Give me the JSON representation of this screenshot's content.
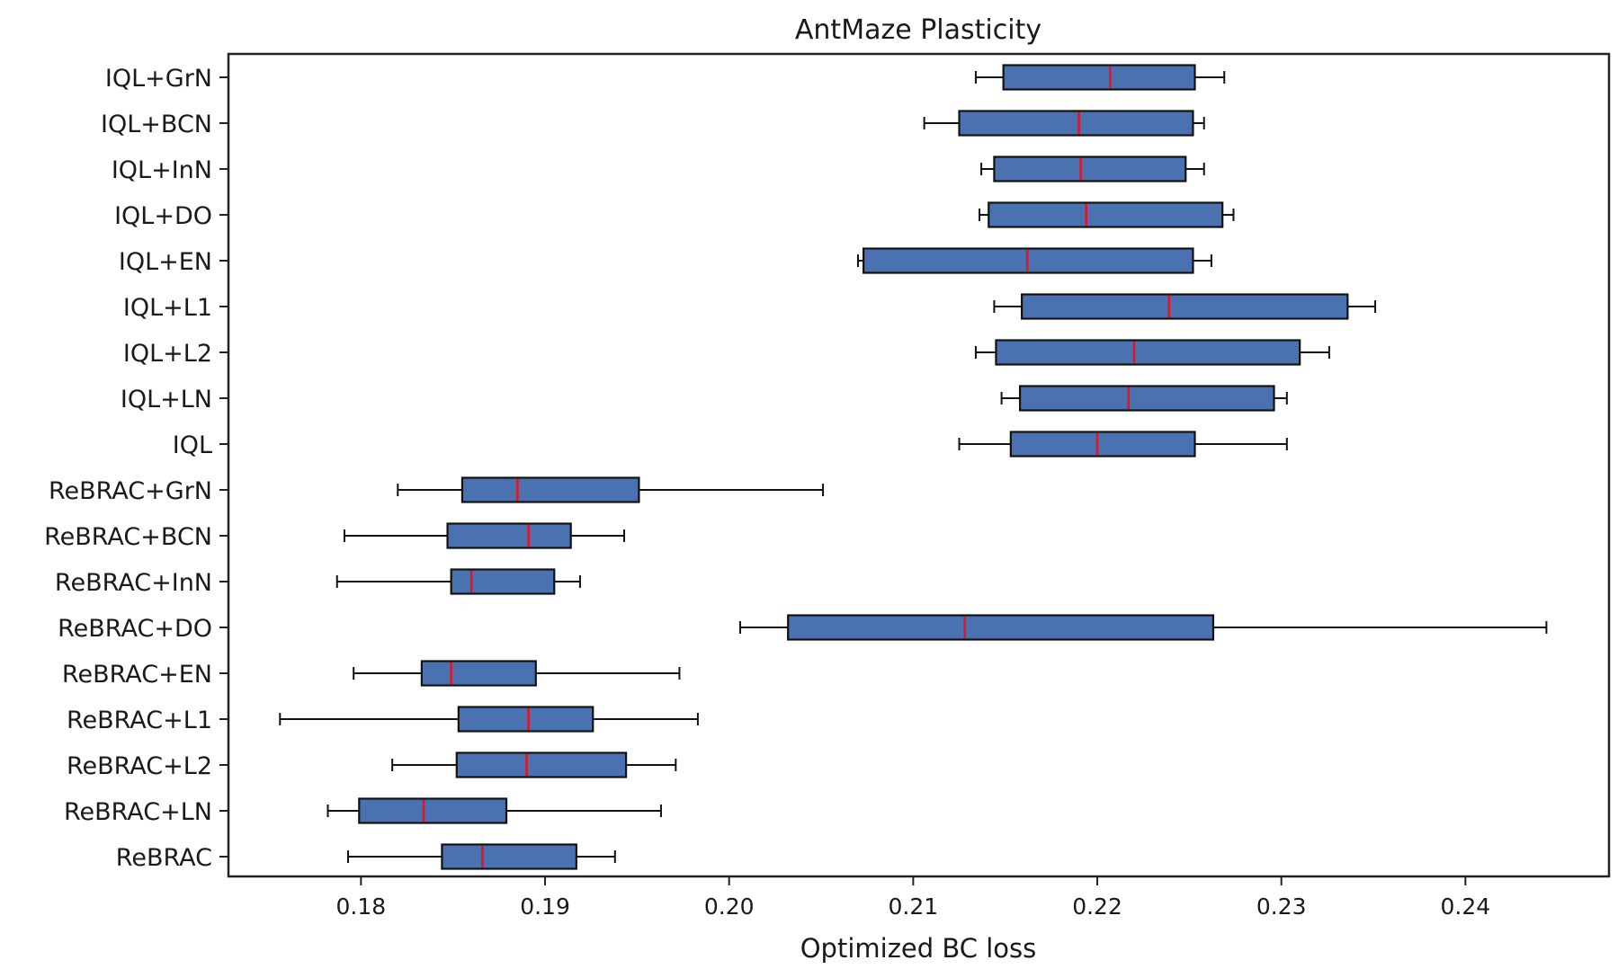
{
  "chart_data": {
    "type": "boxplot",
    "orientation": "horizontal",
    "title": "AntMaze Plasticity",
    "xlabel": "Optimized BC loss",
    "ylabel": "",
    "xlim": [
      0.1728,
      0.2478
    ],
    "xticks": [
      "0.18",
      "0.19",
      "0.20",
      "0.21",
      "0.22",
      "0.23",
      "0.24"
    ],
    "box_color": "#4a72b0",
    "median_color": "#e8111d",
    "categories": [
      "IQL+GrN",
      "IQL+BCN",
      "IQL+InN",
      "IQL+DO",
      "IQL+EN",
      "IQL+L1",
      "IQL+L2",
      "IQL+LN",
      "IQL",
      "ReBRAC+GrN",
      "ReBRAC+BCN",
      "ReBRAC+InN",
      "ReBRAC+DO",
      "ReBRAC+EN",
      "ReBRAC+L1",
      "ReBRAC+L2",
      "ReBRAC+LN",
      "ReBRAC"
    ],
    "series": [
      {
        "name": "IQL+GrN",
        "whisker_low": 0.2134,
        "q1": 0.2149,
        "median": 0.2207,
        "q3": 0.2253,
        "whisker_high": 0.2269
      },
      {
        "name": "IQL+BCN",
        "whisker_low": 0.2106,
        "q1": 0.2125,
        "median": 0.219,
        "q3": 0.2252,
        "whisker_high": 0.2258
      },
      {
        "name": "IQL+InN",
        "whisker_low": 0.2137,
        "q1": 0.2144,
        "median": 0.2191,
        "q3": 0.2248,
        "whisker_high": 0.2258
      },
      {
        "name": "IQL+DO",
        "whisker_low": 0.2136,
        "q1": 0.2141,
        "median": 0.2194,
        "q3": 0.2268,
        "whisker_high": 0.2274
      },
      {
        "name": "IQL+EN",
        "whisker_low": 0.207,
        "q1": 0.2073,
        "median": 0.2162,
        "q3": 0.2252,
        "whisker_high": 0.2262
      },
      {
        "name": "IQL+L1",
        "whisker_low": 0.2144,
        "q1": 0.2159,
        "median": 0.2239,
        "q3": 0.2336,
        "whisker_high": 0.2351
      },
      {
        "name": "IQL+L2",
        "whisker_low": 0.2134,
        "q1": 0.2145,
        "median": 0.222,
        "q3": 0.231,
        "whisker_high": 0.2326
      },
      {
        "name": "IQL+LN",
        "whisker_low": 0.2148,
        "q1": 0.2158,
        "median": 0.2217,
        "q3": 0.2296,
        "whisker_high": 0.2303
      },
      {
        "name": "IQL",
        "whisker_low": 0.2125,
        "q1": 0.2153,
        "median": 0.22,
        "q3": 0.2253,
        "whisker_high": 0.2303
      },
      {
        "name": "ReBRAC+GrN",
        "whisker_low": 0.182,
        "q1": 0.1855,
        "median": 0.1885,
        "q3": 0.1951,
        "whisker_high": 0.2051
      },
      {
        "name": "ReBRAC+BCN",
        "whisker_low": 0.1791,
        "q1": 0.1847,
        "median": 0.1891,
        "q3": 0.1914,
        "whisker_high": 0.1943
      },
      {
        "name": "ReBRAC+InN",
        "whisker_low": 0.1787,
        "q1": 0.1849,
        "median": 0.186,
        "q3": 0.1905,
        "whisker_high": 0.1919
      },
      {
        "name": "ReBRAC+DO",
        "whisker_low": 0.2006,
        "q1": 0.2032,
        "median": 0.2128,
        "q3": 0.2263,
        "whisker_high": 0.2444
      },
      {
        "name": "ReBRAC+EN",
        "whisker_low": 0.1796,
        "q1": 0.1833,
        "median": 0.1849,
        "q3": 0.1895,
        "whisker_high": 0.1973
      },
      {
        "name": "ReBRAC+L1",
        "whisker_low": 0.1756,
        "q1": 0.1853,
        "median": 0.1891,
        "q3": 0.1926,
        "whisker_high": 0.1983
      },
      {
        "name": "ReBRAC+L2",
        "whisker_low": 0.1817,
        "q1": 0.1852,
        "median": 0.189,
        "q3": 0.1944,
        "whisker_high": 0.1971
      },
      {
        "name": "ReBRAC+LN",
        "whisker_low": 0.1782,
        "q1": 0.1799,
        "median": 0.1834,
        "q3": 0.1879,
        "whisker_high": 0.1963
      },
      {
        "name": "ReBRAC",
        "whisker_low": 0.1793,
        "q1": 0.1844,
        "median": 0.1866,
        "q3": 0.1917,
        "whisker_high": 0.1938
      }
    ],
    "grid": false,
    "legend": "none"
  }
}
